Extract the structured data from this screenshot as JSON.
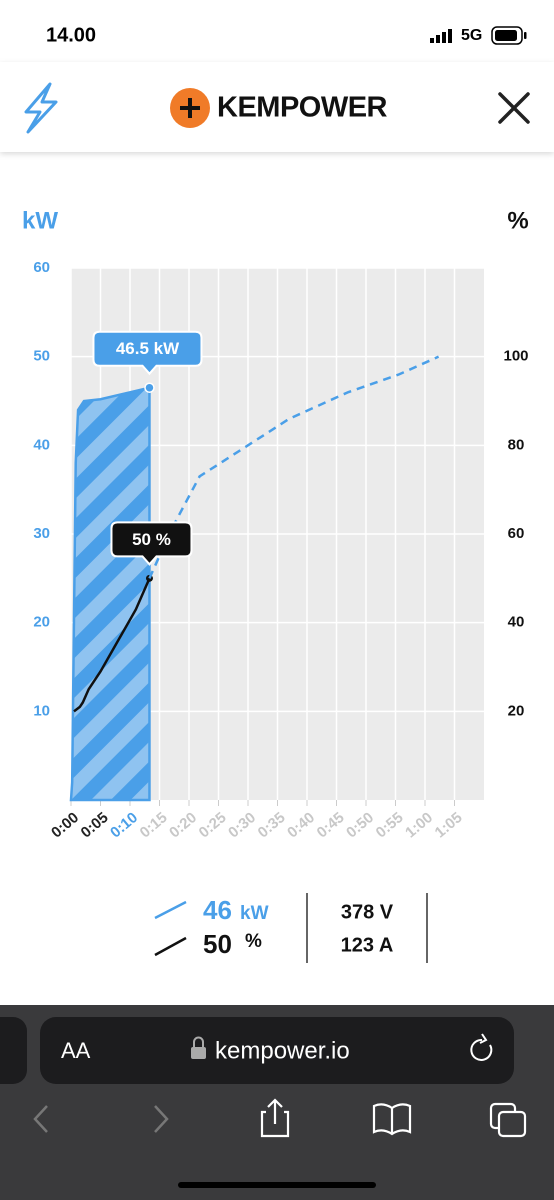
{
  "status_bar": {
    "time": "14.00",
    "network": "5G"
  },
  "header": {
    "brand": "KEMPOWER"
  },
  "chart_data": {
    "type": "line",
    "y_label": "kW",
    "y2_label": "%",
    "xlim": [
      0,
      70
    ],
    "xticks": [
      {
        "value": 0,
        "label": "0:00"
      },
      {
        "value": 5,
        "label": "0:05"
      },
      {
        "value": 10,
        "label": "0:10"
      },
      {
        "value": 15,
        "label": "0:15"
      },
      {
        "value": 20,
        "label": "0:20"
      },
      {
        "value": 25,
        "label": "0:25"
      },
      {
        "value": 30,
        "label": "0:30"
      },
      {
        "value": 35,
        "label": "0:35"
      },
      {
        "value": 40,
        "label": "0:40"
      },
      {
        "value": 45,
        "label": "0:45"
      },
      {
        "value": 50,
        "label": "0:50"
      },
      {
        "value": 55,
        "label": "0:55"
      },
      {
        "value": 60,
        "label": "1:00"
      },
      {
        "value": 65,
        "label": "1:05"
      }
    ],
    "ylim": [
      0,
      60
    ],
    "yticks": [
      10,
      20,
      30,
      40,
      50,
      60
    ],
    "y2lim": [
      0,
      120
    ],
    "y2ticks": [
      20,
      40,
      60,
      80,
      100
    ],
    "grid": true,
    "series": [
      {
        "name": "kW",
        "color": "#4a9fe8",
        "style": "area",
        "x": [
          0,
          0.2,
          0.8,
          1.2,
          2.2,
          5,
          13.3
        ],
        "values": [
          0,
          2,
          38,
          44,
          45,
          45.2,
          46.5
        ]
      },
      {
        "name": "%",
        "color": "#111111",
        "axis": "y2",
        "style": "solid",
        "x": [
          0.5,
          1.5,
          2,
          3,
          5,
          8,
          11,
          13.3
        ],
        "values": [
          20,
          21,
          22,
          25,
          29,
          36,
          43,
          50
        ]
      },
      {
        "color": "#4a9fe8",
        "axis": "y2",
        "style": "dashed",
        "x": [
          13.3,
          17,
          21.8,
          30,
          37,
          47,
          55.6,
          62.3
        ],
        "values": [
          50,
          61,
          73,
          80,
          86,
          92,
          96,
          100
        ]
      }
    ],
    "annotations": [
      "46.5 kW",
      "50 %"
    ]
  },
  "readout": {
    "power": 46,
    "soc": 50,
    "voltage": "378 V",
    "current": "123 A"
  },
  "browser": {
    "text_size": "AA",
    "url": "kempower.io"
  }
}
